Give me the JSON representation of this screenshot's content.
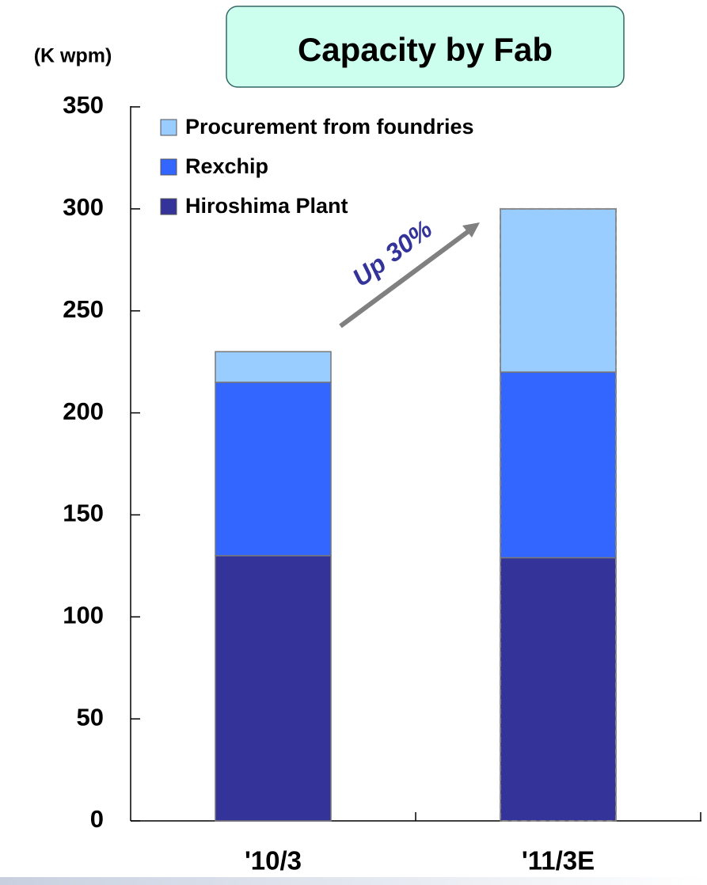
{
  "chart_data": {
    "type": "stacked_bar",
    "title": "Capacity by Fab",
    "y_label": "(K wpm)",
    "annotation": "Up 30%",
    "categories": [
      "'10/3",
      "'11/3E"
    ],
    "series": [
      {
        "name": "Hiroshima Plant",
        "color": "#333399",
        "values": [
          130,
          129
        ]
      },
      {
        "name": "Rexchip",
        "color": "#3366ff",
        "values": [
          85,
          91
        ]
      },
      {
        "name": "Procurement from foundries",
        "color": "#99ccff",
        "values": [
          15,
          80
        ]
      }
    ],
    "ylim": [
      0,
      350
    ],
    "yticks": [
      0,
      50,
      100,
      150,
      200,
      250,
      300,
      350
    ]
  }
}
